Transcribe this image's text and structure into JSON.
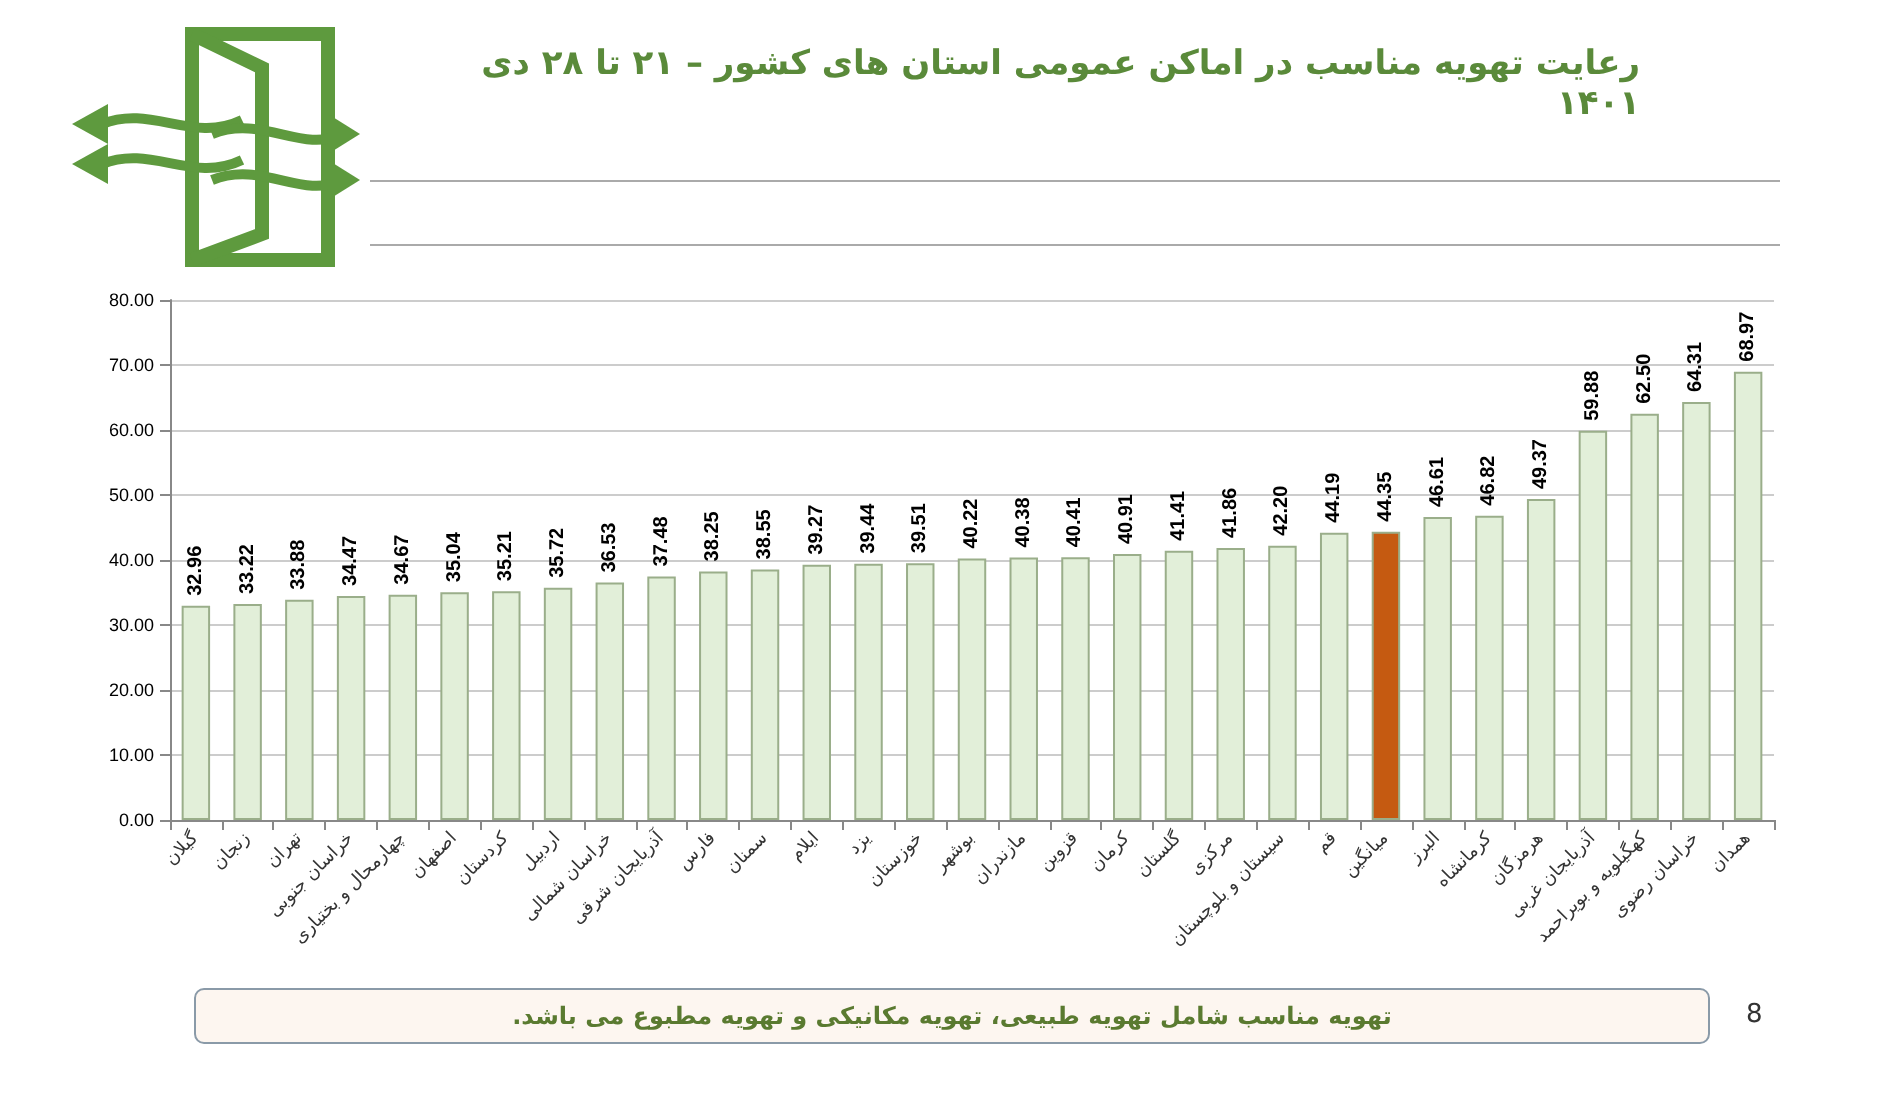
{
  "chart_data": {
    "type": "bar",
    "title": "رعایت تهویه مناسب در اماکن عمومی استان های کشور  – ۲۱ تا ۲۸ دی ۱۴۰۱",
    "categories": [
      "گیلان",
      "زنجان",
      "تهران",
      "خراسان جنوبی",
      "چهارمحال و بختیاری",
      "اصفهان",
      "کردستان",
      "اردبیل",
      "خراسان شمالی",
      "آذربایجان شرقی",
      "فارس",
      "سمنان",
      "ایلام",
      "یزد",
      "خوزستان",
      "بوشهر",
      "مازندران",
      "قزوین",
      "کرمان",
      "گلستان",
      "مرکزی",
      "سیستان و بلوچستان",
      "قم",
      "میانگین",
      "البرز",
      "کرمانشاه",
      "هرمزگان",
      "آذربایجان غربی",
      "کهگیلویه و بویراحمد",
      "خراسان رضوی",
      "همدان"
    ],
    "values": [
      32.96,
      33.22,
      33.88,
      34.47,
      34.67,
      35.04,
      35.21,
      35.72,
      36.53,
      37.48,
      38.25,
      38.55,
      39.27,
      39.44,
      39.51,
      40.22,
      40.38,
      40.41,
      40.91,
      41.41,
      41.86,
      42.2,
      44.19,
      44.35,
      46.61,
      46.82,
      49.37,
      59.88,
      62.5,
      64.31,
      68.97
    ],
    "value_labels": [
      "32.96",
      "33.22",
      "33.88",
      "34.47",
      "34.67",
      "35.04",
      "35.21",
      "35.72",
      "36.53",
      "37.48",
      "38.25",
      "38.55",
      "39.27",
      "39.44",
      "39.51",
      "40.22",
      "40.38",
      "40.41",
      "40.91",
      "41.41",
      "41.86",
      "42.20",
      "44.19",
      "44.35",
      "46.61",
      "46.82",
      "49.37",
      "59.88",
      "62.50",
      "64.31",
      "68.97"
    ],
    "colors": [
      "#e2efd9",
      "#e2efd9",
      "#e2efd9",
      "#e2efd9",
      "#e2efd9",
      "#e2efd9",
      "#e2efd9",
      "#e2efd9",
      "#e2efd9",
      "#e2efd9",
      "#e2efd9",
      "#e2efd9",
      "#e2efd9",
      "#e2efd9",
      "#e2efd9",
      "#e2efd9",
      "#e2efd9",
      "#e2efd9",
      "#e2efd9",
      "#e2efd9",
      "#e2efd9",
      "#e2efd9",
      "#e2efd9",
      "#c55a11",
      "#e2efd9",
      "#e2efd9",
      "#e2efd9",
      "#e2efd9",
      "#e2efd9",
      "#e2efd9",
      "#e2efd9"
    ],
    "ylim": [
      0,
      80
    ],
    "yticks": [
      {
        "value": 0,
        "label": "0.00"
      },
      {
        "value": 10,
        "label": "10.00"
      },
      {
        "value": 20,
        "label": "20.00"
      },
      {
        "value": 30,
        "label": "30.00"
      },
      {
        "value": 40,
        "label": "40.00"
      },
      {
        "value": 50,
        "label": "50.00"
      },
      {
        "value": 60,
        "label": "60.00"
      },
      {
        "value": 70,
        "label": "70.00"
      },
      {
        "value": 80,
        "label": "80.00"
      }
    ],
    "grid": "y",
    "annotations": [
      "تهویه مناسب شامل تهویه طبیعی، تهویه مکانیکی و تهویه مطبوع می باشد.",
      "8"
    ]
  }
}
